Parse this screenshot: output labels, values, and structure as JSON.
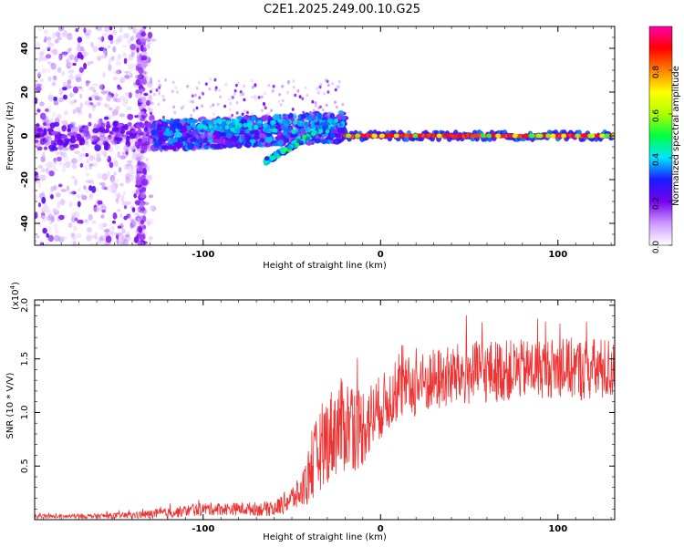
{
  "title": "C2E1.2025.249.00.10.G25",
  "chart_data": [
    {
      "type": "heatmap",
      "xlabel": "Height of straight line (km)",
      "ylabel": "Frequency (Hz)",
      "xlim": [
        -195,
        132
      ],
      "ylim": [
        -50,
        50
      ],
      "xticks": [
        -100,
        0,
        100
      ],
      "yticks": [
        -40,
        -20,
        0,
        20,
        40
      ],
      "colorbar": {
        "label": "Normalized spectral amplitude",
        "range": [
          0,
          1
        ],
        "ticks": [
          "0.0",
          "0.2",
          "0.4",
          "0.6",
          "0.8"
        ],
        "tick_values": [
          0,
          0.2,
          0.4,
          0.6,
          0.8
        ],
        "colors": [
          "#ffffff",
          "#cc99ff",
          "#7700ee",
          "#1a1aff",
          "#00e5ff",
          "#00ff40",
          "#b0ff00",
          "#ffff00",
          "#ff8000",
          "#ff0000",
          "#ff00aa"
        ]
      },
      "features": [
        {
          "label": "scattered noise",
          "x": [
            -195,
            -128
          ],
          "y": [
            -50,
            50
          ],
          "amplitude": 0.15
        },
        {
          "label": "broad band",
          "x": [
            -128,
            -20
          ],
          "y": [
            -5,
            8
          ],
          "amplitude": 0.4
        },
        {
          "label": "drifting tone",
          "x": [
            -65,
            -30
          ],
          "y": [
            -12,
            5
          ],
          "amplitude": 0.5
        },
        {
          "label": "stable tone",
          "x": [
            -20,
            132
          ],
          "y": [
            0,
            0
          ],
          "amplitude": 1.0
        }
      ]
    },
    {
      "type": "line",
      "xlabel": "Height of straight line (km)",
      "ylabel": "SNR (10 * V/V)",
      "multiplier_label": "(x10",
      "multiplier_exp": "4",
      "multiplier_close": ")",
      "xlim": [
        -195,
        132
      ],
      "ylim": [
        0,
        2.05
      ],
      "xticks": [
        -100,
        0,
        100
      ],
      "yticks": [
        0.5,
        1.0,
        1.5,
        2.0
      ],
      "ytick_labels": [
        "0.5",
        "1.0",
        "1.5",
        "2.0"
      ],
      "color": "#ee3333",
      "series": [
        {
          "name": "SNR envelope",
          "x": [
            -195,
            -170,
            -140,
            -120,
            -100,
            -80,
            -60,
            -45,
            -38,
            -33,
            -25,
            -18,
            -12,
            -5,
            0,
            10,
            20,
            30,
            45,
            60,
            80,
            100,
            115,
            132
          ],
          "y": [
            0.03,
            0.03,
            0.04,
            0.06,
            0.1,
            0.1,
            0.1,
            0.25,
            0.5,
            0.7,
            0.85,
            0.9,
            0.85,
            0.95,
            1.05,
            1.2,
            1.25,
            1.3,
            1.35,
            1.38,
            1.4,
            1.42,
            1.4,
            1.4
          ],
          "noise": [
            0.02,
            0.02,
            0.03,
            0.05,
            0.06,
            0.06,
            0.07,
            0.15,
            0.35,
            0.4,
            0.45,
            0.45,
            0.4,
            0.35,
            0.3,
            0.28,
            0.3,
            0.3,
            0.3,
            0.3,
            0.28,
            0.28,
            0.3,
            0.3
          ]
        }
      ]
    }
  ]
}
